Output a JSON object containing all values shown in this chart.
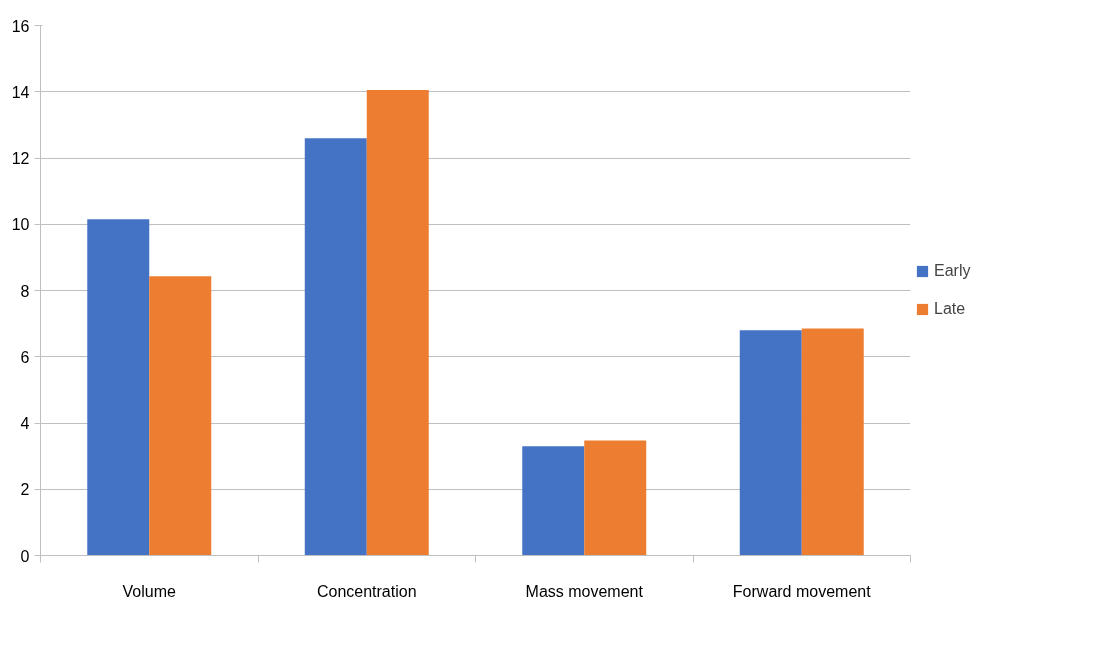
{
  "chart_data": {
    "type": "bar",
    "categories": [
      "Volume",
      "Concentration",
      "Mass movement",
      "Forward movement"
    ],
    "series": [
      {
        "name": "Early",
        "color": "#4472c4",
        "values": [
          10.15,
          12.6,
          3.3,
          6.8
        ]
      },
      {
        "name": "Late",
        "color": "#ed7d31",
        "values": [
          8.43,
          14.05,
          3.47,
          6.85
        ]
      }
    ],
    "ylim": [
      0,
      16
    ],
    "yticks": [
      0,
      2,
      4,
      6,
      8,
      10,
      12,
      14,
      16
    ],
    "grid": "y",
    "legend": "right"
  }
}
